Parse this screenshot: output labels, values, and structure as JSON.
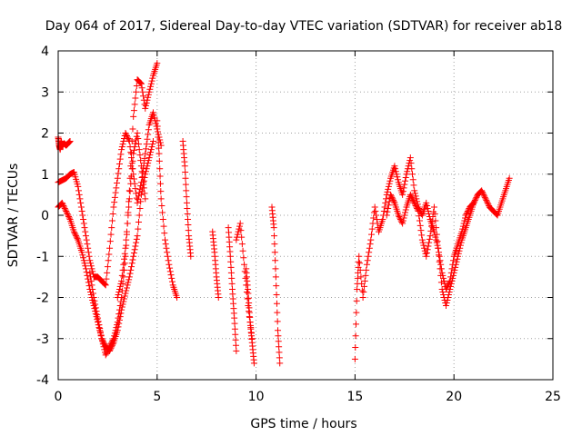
{
  "chart_data": {
    "type": "scatter",
    "title": "Day 064 of 2017, Sidereal Day-to-day VTEC variation (SDTVAR) for receiver ab18",
    "xlabel": "GPS time / hours",
    "ylabel": "SDTVAR / TECUs",
    "xlim": [
      0,
      25
    ],
    "ylim": [
      -4,
      4
    ],
    "xticks": [
      0,
      5,
      10,
      15,
      20,
      25
    ],
    "yticks": [
      -4,
      -3,
      -2,
      -1,
      0,
      1,
      2,
      3,
      4
    ],
    "xtick_labels": [
      "0",
      "5",
      "10",
      "15",
      "20",
      "25"
    ],
    "ytick_labels": [
      "-4",
      "-3",
      "-2",
      "-1",
      "0",
      "1",
      "2",
      "3",
      "4"
    ],
    "grid": true,
    "marker": "+",
    "series": [
      {
        "name": "SDTVAR",
        "color": "#ff0000",
        "segments": [
          {
            "x": [
              0.0,
              0.05,
              0.1,
              0.15,
              0.2,
              0.3,
              0.4,
              0.5,
              0.6
            ],
            "y": [
              1.9,
              1.7,
              1.6,
              1.8,
              1.7,
              1.75,
              1.7,
              1.75,
              1.8
            ]
          },
          {
            "x": [
              0.0,
              0.2,
              0.4,
              0.6,
              0.8,
              1.0,
              1.2,
              1.4,
              1.6,
              1.8,
              2.0,
              2.2,
              2.4,
              2.6,
              2.8,
              3.0,
              3.2,
              3.4,
              3.6,
              3.8,
              4.0,
              4.2,
              4.4,
              4.6,
              4.8,
              5.0,
              5.2
            ],
            "y": [
              0.8,
              0.85,
              0.9,
              1.0,
              1.05,
              0.7,
              0.1,
              -0.5,
              -1.1,
              -1.5,
              -1.5,
              -1.6,
              -1.7,
              -0.8,
              0.2,
              0.9,
              1.6,
              2.0,
              1.8,
              1.0,
              0.3,
              0.8,
              1.5,
              2.2,
              2.5,
              2.1,
              1.7
            ]
          },
          {
            "x": [
              0.0,
              0.2,
              0.4,
              0.6,
              0.8,
              1.0,
              1.2,
              1.4,
              1.6,
              1.8,
              2.0,
              2.2,
              2.4,
              2.6,
              2.8,
              3.0,
              3.2,
              3.4,
              3.6,
              3.8,
              4.0,
              4.2,
              4.4,
              4.6,
              4.8
            ],
            "y": [
              0.2,
              0.3,
              0.1,
              -0.1,
              -0.4,
              -0.6,
              -0.9,
              -1.3,
              -1.8,
              -2.2,
              -2.6,
              -3.0,
              -3.2,
              -3.3,
              -3.1,
              -2.8,
              -2.3,
              -1.9,
              -1.5,
              -1.0,
              -0.5,
              0.5,
              1.0,
              1.4,
              1.8
            ]
          },
          {
            "x": [
              1.6,
              1.8,
              2.0,
              2.2,
              2.4,
              2.6,
              2.8,
              3.0,
              3.2,
              3.4,
              3.6,
              3.8,
              4.0,
              4.2,
              4.4,
              4.6,
              4.8,
              5.0
            ],
            "y": [
              -1.4,
              -2.0,
              -2.5,
              -3.0,
              -3.4,
              -3.2,
              -3.0,
              -2.6,
              -2.0,
              -1.0,
              0.6,
              2.4,
              3.3,
              3.2,
              2.6,
              3.0,
              3.4,
              3.7
            ]
          },
          {
            "x": [
              3.0,
              3.2,
              3.4,
              3.6,
              3.8,
              4.0,
              4.2,
              4.4
            ],
            "y": [
              -2.0,
              -1.6,
              -0.8,
              0.4,
              1.5,
              2.0,
              1.2,
              0.4
            ]
          },
          {
            "x": [
              5.0,
              5.1,
              5.2,
              5.4,
              5.6,
              5.8,
              6.0
            ],
            "y": [
              2.3,
              1.5,
              0.4,
              -0.6,
              -1.2,
              -1.7,
              -2.0
            ]
          },
          {
            "x": [
              6.3,
              6.4,
              6.5,
              6.6,
              6.7
            ],
            "y": [
              1.8,
              1.2,
              0.3,
              -0.5,
              -1.0
            ]
          },
          {
            "x": [
              7.8,
              7.9,
              8.0,
              8.1
            ],
            "y": [
              -0.4,
              -0.9,
              -1.5,
              -2.0
            ]
          },
          {
            "x": [
              8.6,
              8.7,
              8.8,
              8.9,
              9.0
            ],
            "y": [
              -0.3,
              -1.0,
              -1.8,
              -2.5,
              -3.3
            ]
          },
          {
            "x": [
              9.0,
              9.2,
              9.4,
              9.6,
              9.8
            ],
            "y": [
              -0.6,
              -0.2,
              -1.2,
              -2.2,
              -3.0
            ]
          },
          {
            "x": [
              9.5,
              9.6,
              9.7,
              9.8,
              9.9
            ],
            "y": [
              -1.3,
              -1.9,
              -2.6,
              -3.1,
              -3.6
            ]
          },
          {
            "x": [
              10.8,
              10.9,
              11.0,
              11.1,
              11.2
            ],
            "y": [
              0.2,
              -0.3,
              -1.5,
              -2.8,
              -3.6
            ]
          },
          {
            "x": [
              15.0,
              15.1,
              15.2,
              15.4,
              15.6,
              15.8,
              16.0,
              16.2,
              16.4,
              16.6,
              16.8,
              17.0,
              17.2,
              17.4,
              17.6,
              17.8,
              18.0,
              18.2,
              18.4,
              18.6,
              18.8,
              19.0,
              19.2,
              19.4,
              19.6,
              19.8,
              20.0,
              20.2,
              20.4,
              20.6,
              20.8,
              21.0,
              21.2,
              21.4,
              21.6,
              21.8,
              22.0,
              22.2,
              22.4,
              22.6,
              22.8
            ],
            "y": [
              -3.5,
              -1.8,
              -1.0,
              -2.0,
              -1.2,
              -0.6,
              0.2,
              -0.4,
              -0.1,
              0.5,
              0.9,
              1.2,
              0.8,
              0.5,
              1.0,
              1.4,
              0.6,
              0.2,
              0.0,
              0.3,
              -0.1,
              -0.4,
              -0.8,
              -1.4,
              -1.8,
              -1.6,
              -1.0,
              -0.7,
              -0.4,
              0.0,
              0.2,
              0.3,
              0.5,
              0.6,
              0.4,
              0.2,
              0.1,
              0.0,
              0.3,
              0.6,
              0.9
            ]
          },
          {
            "x": [
              16.6,
              16.8,
              17.0,
              17.2,
              17.4,
              17.6,
              17.8,
              18.0,
              18.2,
              18.4,
              18.6,
              18.8,
              19.0,
              19.2,
              19.4,
              19.6,
              19.8,
              20.0,
              20.2,
              20.4,
              20.6,
              20.8,
              21.0
            ],
            "y": [
              0.0,
              0.5,
              0.3,
              0.0,
              -0.2,
              0.2,
              0.5,
              0.3,
              0.1,
              -0.6,
              -1.0,
              -0.5,
              0.2,
              -0.8,
              -1.8,
              -2.2,
              -1.8,
              -1.4,
              -1.0,
              -0.6,
              -0.3,
              0.0,
              0.3
            ]
          }
        ]
      }
    ]
  }
}
